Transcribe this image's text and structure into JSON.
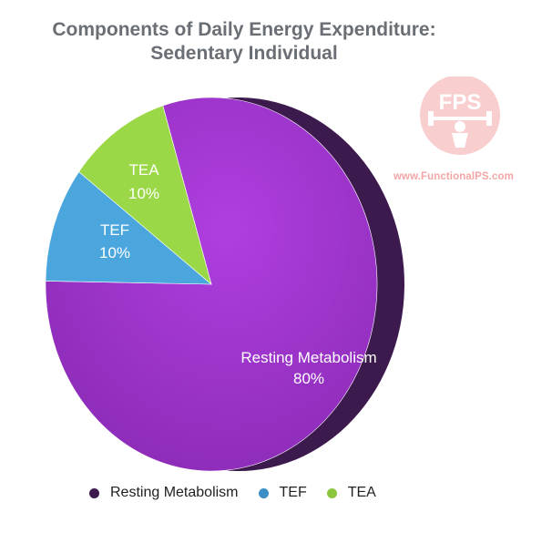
{
  "chart_data": {
    "type": "pie",
    "title_line1": "Components of Daily Energy Expenditure:",
    "title_line2": "Sedentary Individual",
    "slices": [
      {
        "label": "Resting Metabolism",
        "value": 80,
        "pct_label": "80%",
        "color": "#9b3ad0",
        "side_color": "#3d1a4e"
      },
      {
        "label": "TEF",
        "value": 10,
        "pct_label": "10%",
        "color": "#4aa6dd",
        "side_color": "#2c6a90"
      },
      {
        "label": "TEA",
        "value": 10,
        "pct_label": "10%",
        "color": "#9bd848",
        "side_color": "#5c8a20"
      }
    ],
    "legend": [
      {
        "label": "Resting Metabolism",
        "color": "#3d1a4e"
      },
      {
        "label": "TEF",
        "color": "#3b8fc4"
      },
      {
        "label": "TEA",
        "color": "#8cc63f"
      }
    ],
    "legend_position": "bottom"
  },
  "watermark": {
    "logo_text": "FPS",
    "url": "www.FunctionalPS.com",
    "color": "#f3a7a7"
  }
}
